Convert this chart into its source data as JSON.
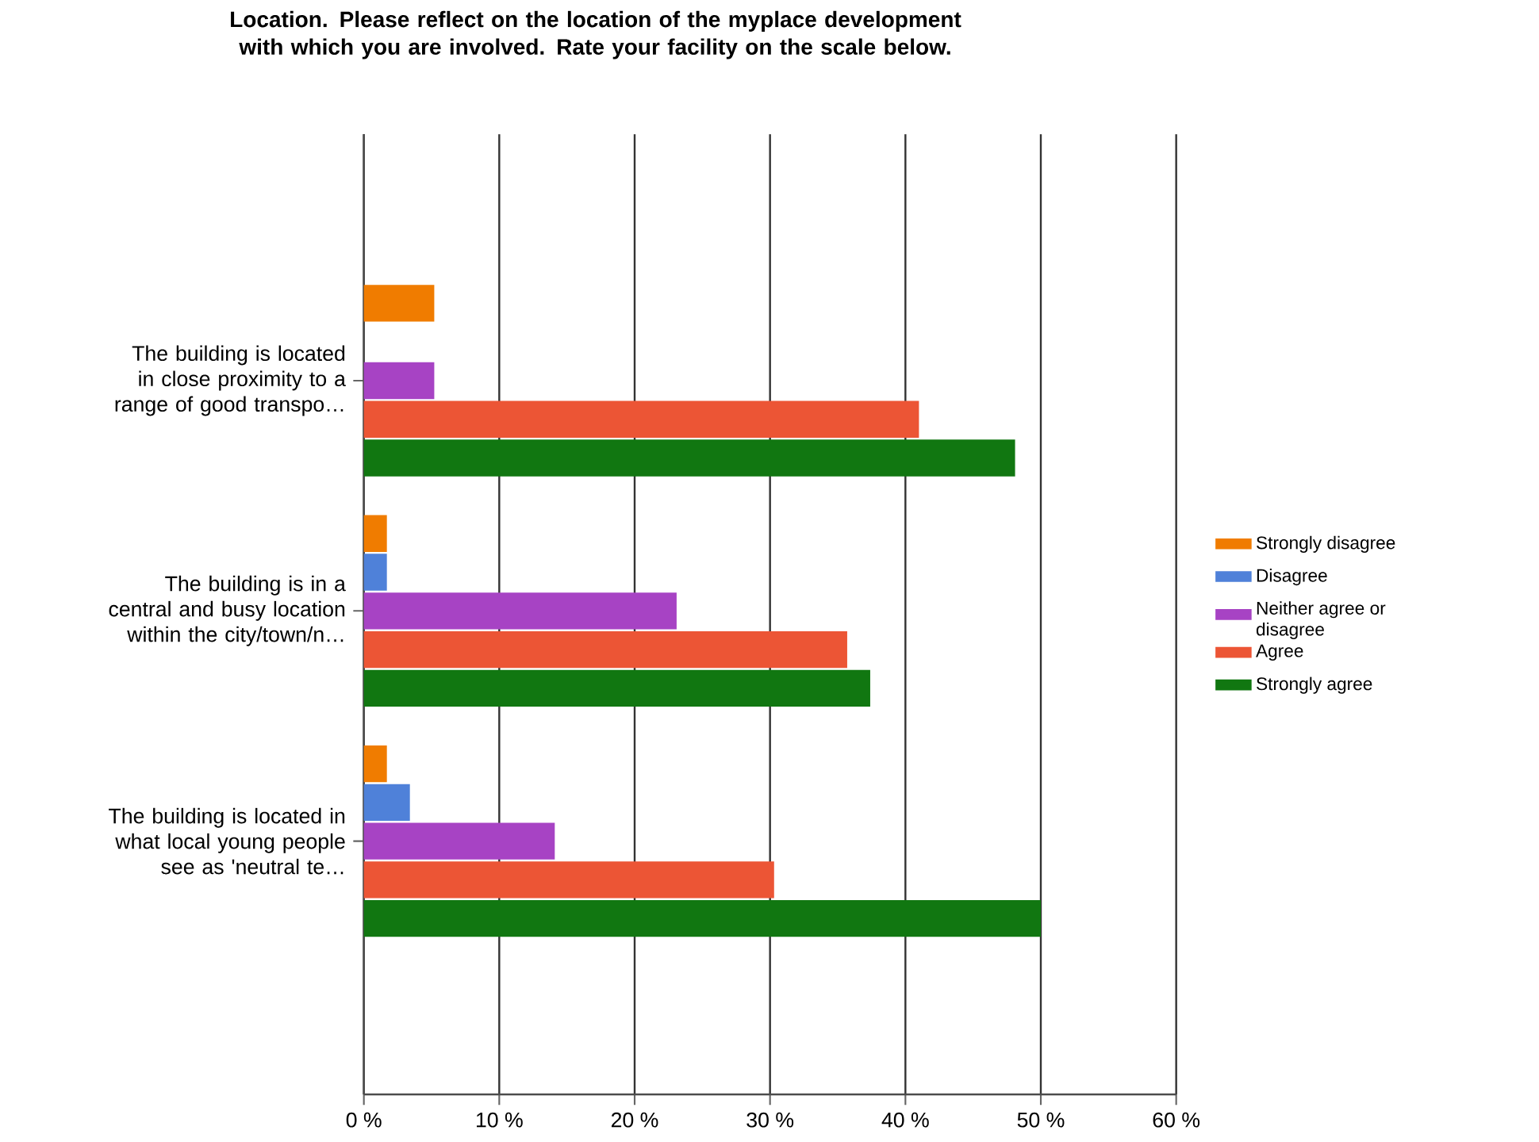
{
  "chart_data": {
    "type": "bar",
    "orientation": "horizontal",
    "title": "Location. Please reflect on the location of the myplace development with which you are involved. Rate your facility on the scale below.",
    "categories": [
      "The building is located in close proximity to a range of good transpo…",
      "The building is in a central and busy location within the city/town/n…",
      "The building is located in what local young people see as 'neutral te…"
    ],
    "series": [
      {
        "name": "Strongly disagree",
        "color": "#f07c00",
        "values": [
          5.2,
          1.7,
          1.7
        ]
      },
      {
        "name": "Disagree",
        "color": "#4f81d9",
        "values": [
          0,
          1.7,
          3.4
        ]
      },
      {
        "name": "Neither agree or disagree",
        "color": "#a743c4",
        "values": [
          5.2,
          23.1,
          14.1
        ]
      },
      {
        "name": "Agree",
        "color": "#ec5535",
        "values": [
          41.0,
          35.7,
          30.3
        ]
      },
      {
        "name": "Strongly agree",
        "color": "#117711",
        "values": [
          48.1,
          37.4,
          50.0
        ]
      }
    ],
    "xlim": [
      0,
      60
    ],
    "xticks": [
      {
        "value": 0,
        "label": "0 %"
      },
      {
        "value": 10,
        "label": "10 %"
      },
      {
        "value": 20,
        "label": "20 %"
      },
      {
        "value": 30,
        "label": "30 %"
      },
      {
        "value": 40,
        "label": "40 %"
      },
      {
        "value": 50,
        "label": "50 %"
      },
      {
        "value": 60,
        "label": "60 %"
      }
    ],
    "grid": "x",
    "legend": "right"
  }
}
